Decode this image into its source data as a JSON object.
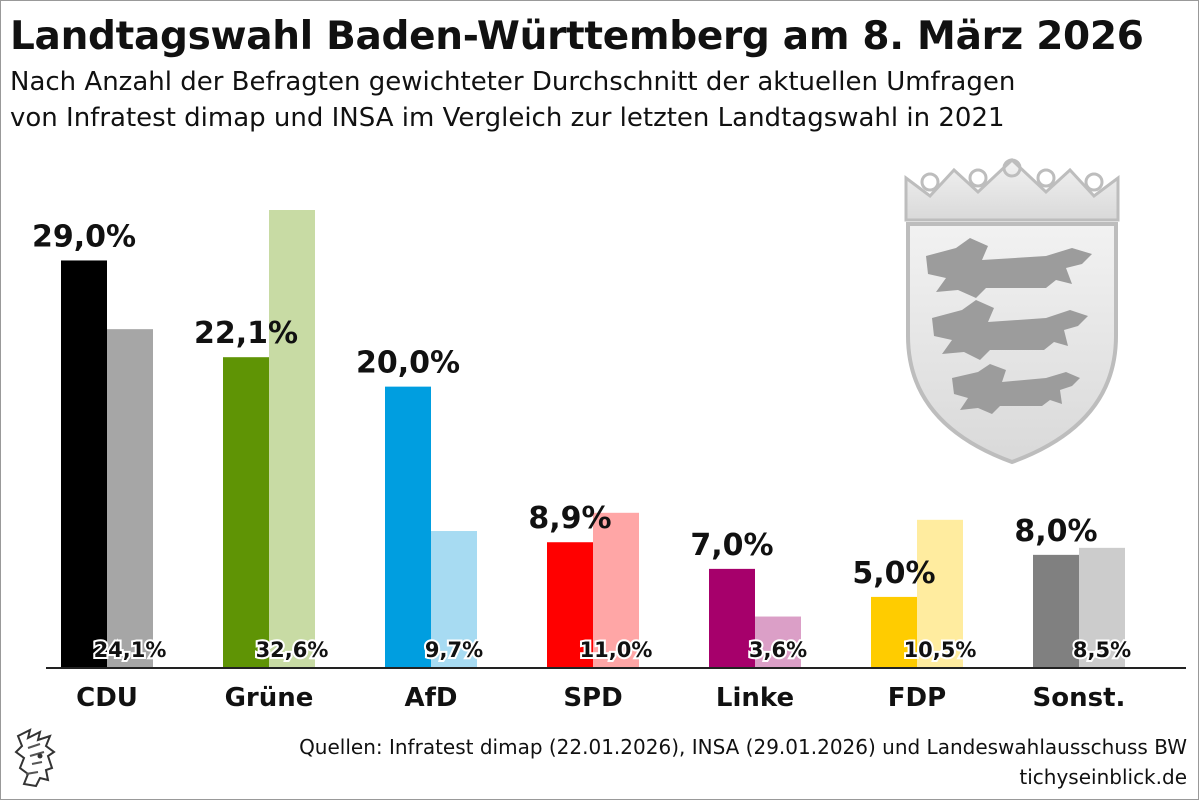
{
  "header": {
    "title": "Landtagswahl Baden-Württemberg am 8. März 2026",
    "subtitle_line1": "Nach Anzahl der Befragten gewichteter Durchschnitt der aktuellen Umfragen",
    "subtitle_line2": "von Infratest dimap und INSA im Vergleich zur letzten Landtagswahl in 2021"
  },
  "footer": {
    "sources": "Quellen: Infratest dimap (22.01.2026), INSA (29.01.2026) und Landeswahlausschuss BW",
    "site": "tichyseinblick.de"
  },
  "icons": {
    "coat_of_arms": "baden-wuerttemberg-coat-of-arms-icon",
    "publisher_logo": "mercury-head-logo-icon"
  },
  "chart_data": {
    "type": "bar",
    "categories": [
      "CDU",
      "Grüne",
      "AfD",
      "SPD",
      "Linke",
      "FDP",
      "Sonst."
    ],
    "series": [
      {
        "values": [
          29.0,
          22.1,
          20.0,
          8.9,
          7.0,
          5.0,
          8.0
        ],
        "labels": [
          "29,0%",
          "22,1%",
          "20,0%",
          "8,9%",
          "7,0%",
          "5,0%",
          "8,0%"
        ],
        "colors": [
          "#000000",
          "#5f9405",
          "#009ee0",
          "#ff0000",
          "#a6006b",
          "#ffcc00",
          "#808080"
        ]
      },
      {
        "values": [
          24.1,
          32.6,
          9.7,
          11.0,
          3.6,
          10.5,
          8.5
        ],
        "labels": [
          "24,1%",
          "32,6%",
          "9,7%",
          "11,0%",
          "3,6%",
          "10,5%",
          "8,5%"
        ],
        "colors": [
          "#a6a6a6",
          "#c8dba4",
          "#a7dbf2",
          "#ffa6a6",
          "#db9fc7",
          "#ffec9f",
          "#cccccc"
        ]
      }
    ],
    "ylim": [
      0,
      33
    ],
    "grid": false,
    "legend": "none"
  }
}
